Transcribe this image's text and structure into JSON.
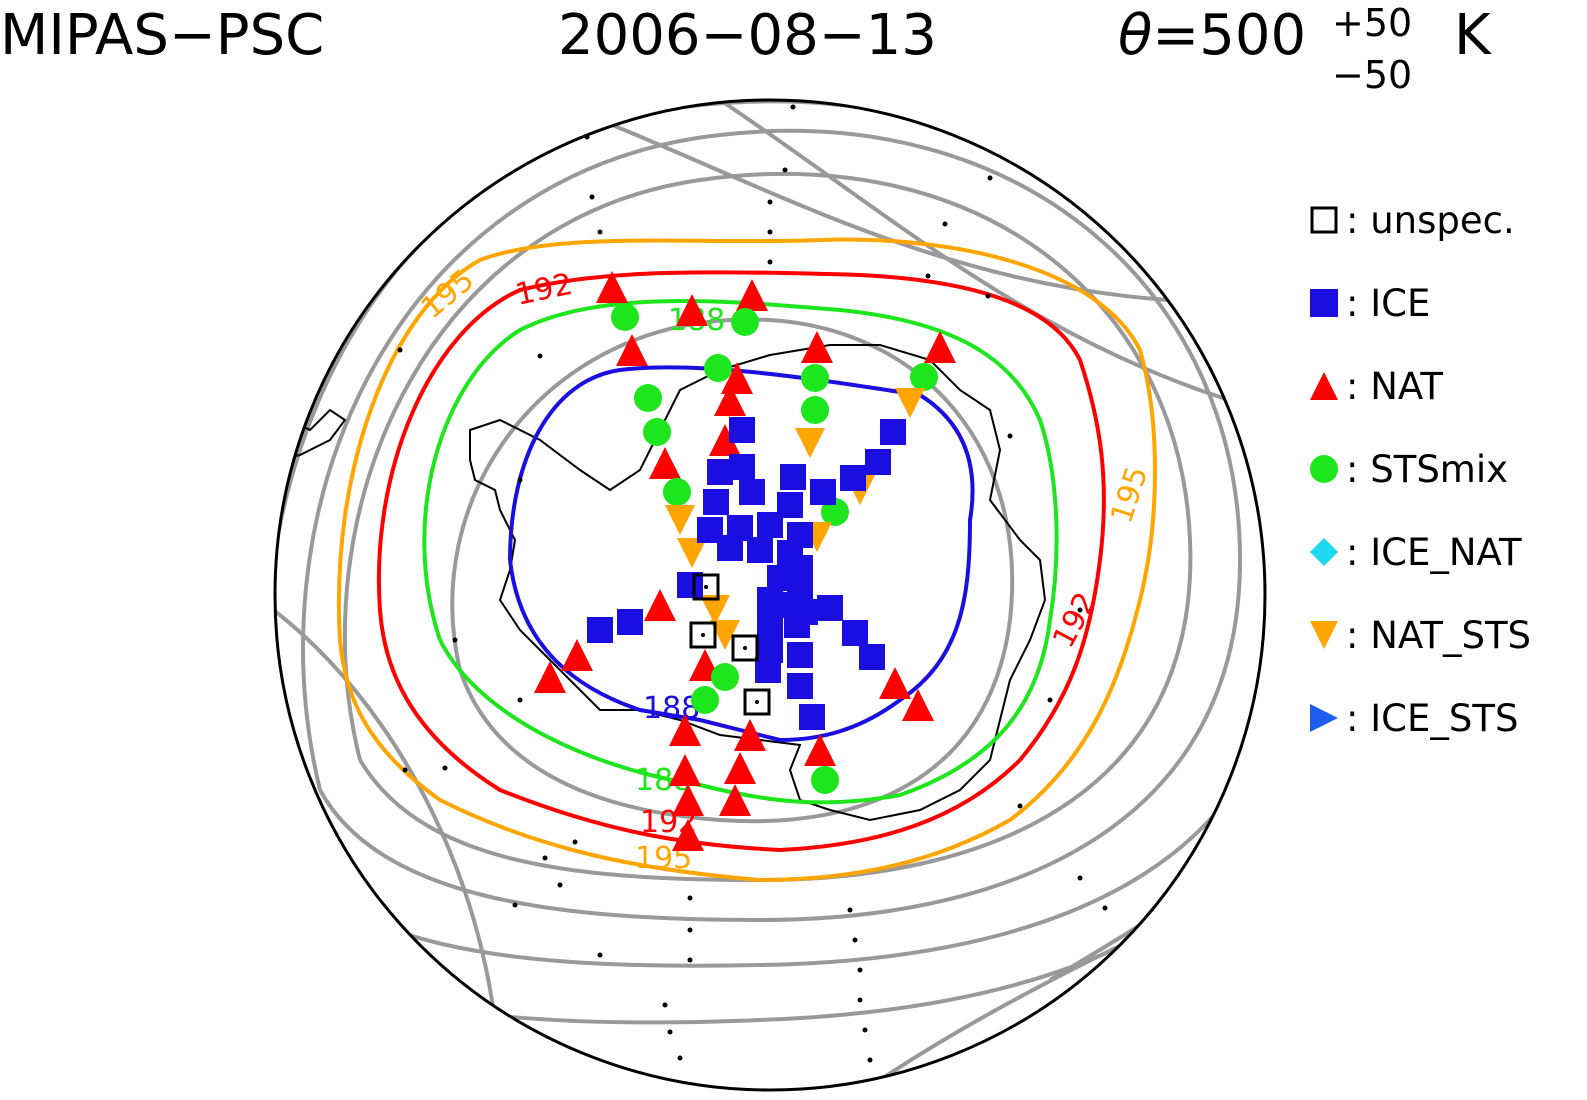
{
  "header": {
    "instrument": "MIPAS−PSC",
    "date": "2006−08−13",
    "theta_symbol": "θ",
    "theta_eq": "=500",
    "theta_sup": "+50",
    "theta_sub": "−50",
    "theta_unit": "K"
  },
  "legend": {
    "separator": ":",
    "items": [
      {
        "key": "unspec",
        "label": "unspec.",
        "marker": "open-square",
        "color": "#000000"
      },
      {
        "key": "ice",
        "label": "ICE",
        "marker": "filled-square",
        "color": "#1a0ee0"
      },
      {
        "key": "nat",
        "label": "NAT",
        "marker": "triangle-up",
        "color": "#ff0000"
      },
      {
        "key": "stsmix",
        "label": "STSmix",
        "marker": "circle",
        "color": "#1de61d"
      },
      {
        "key": "ice_nat",
        "label": "ICE_NAT",
        "marker": "diamond",
        "color": "#19d8f0"
      },
      {
        "key": "nat_sts",
        "label": "NAT_STS",
        "marker": "triangle-down",
        "color": "#ffa500"
      },
      {
        "key": "ice_sts",
        "label": "ICE_STS",
        "marker": "triangle-right",
        "color": "#1f5cf0"
      }
    ]
  },
  "contours": [
    {
      "level": "188",
      "label": "188",
      "color": "#1a0ee0"
    },
    {
      "level": "188",
      "label": "188",
      "color": "#1de61d"
    },
    {
      "level": "192",
      "label": "192",
      "color": "#ff0000"
    },
    {
      "level": "195",
      "label": "195",
      "color": "#ffa500"
    }
  ],
  "colors": {
    "coast": "#000000",
    "background_contours": "#999999",
    "boundary": "#000000"
  }
}
